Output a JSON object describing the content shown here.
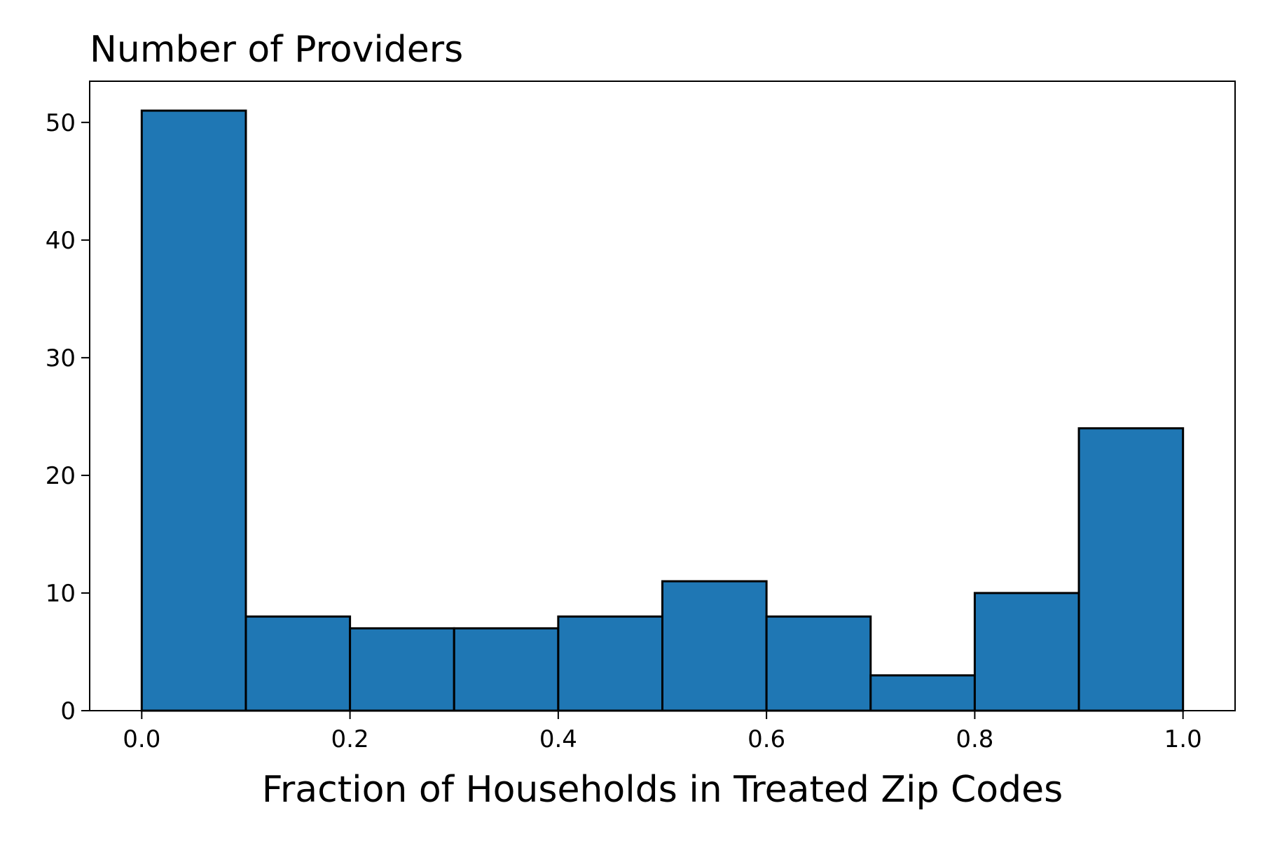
{
  "chart_data": {
    "type": "bar",
    "title": "Number of Providers",
    "xlabel": "Fraction of Households in Treated Zip Codes",
    "ylabel": "",
    "bin_edges": [
      0.0,
      0.1,
      0.2,
      0.3,
      0.4,
      0.5,
      0.6,
      0.7,
      0.8,
      0.9,
      1.0
    ],
    "values": [
      51,
      8,
      7,
      7,
      8,
      11,
      8,
      3,
      10,
      24
    ],
    "xlim": [
      -0.05,
      1.05
    ],
    "ylim": [
      0,
      53.5
    ],
    "xticks": [
      0.0,
      0.2,
      0.4,
      0.6,
      0.8,
      1.0
    ],
    "xtick_labels": [
      "0.0",
      "0.2",
      "0.4",
      "0.6",
      "0.8",
      "1.0"
    ],
    "yticks": [
      0,
      10,
      20,
      30,
      40,
      50
    ],
    "ytick_labels": [
      "0",
      "10",
      "20",
      "30",
      "40",
      "50"
    ],
    "grid": false,
    "bar_color": "#1f77b4",
    "edge_color": "#000000"
  }
}
